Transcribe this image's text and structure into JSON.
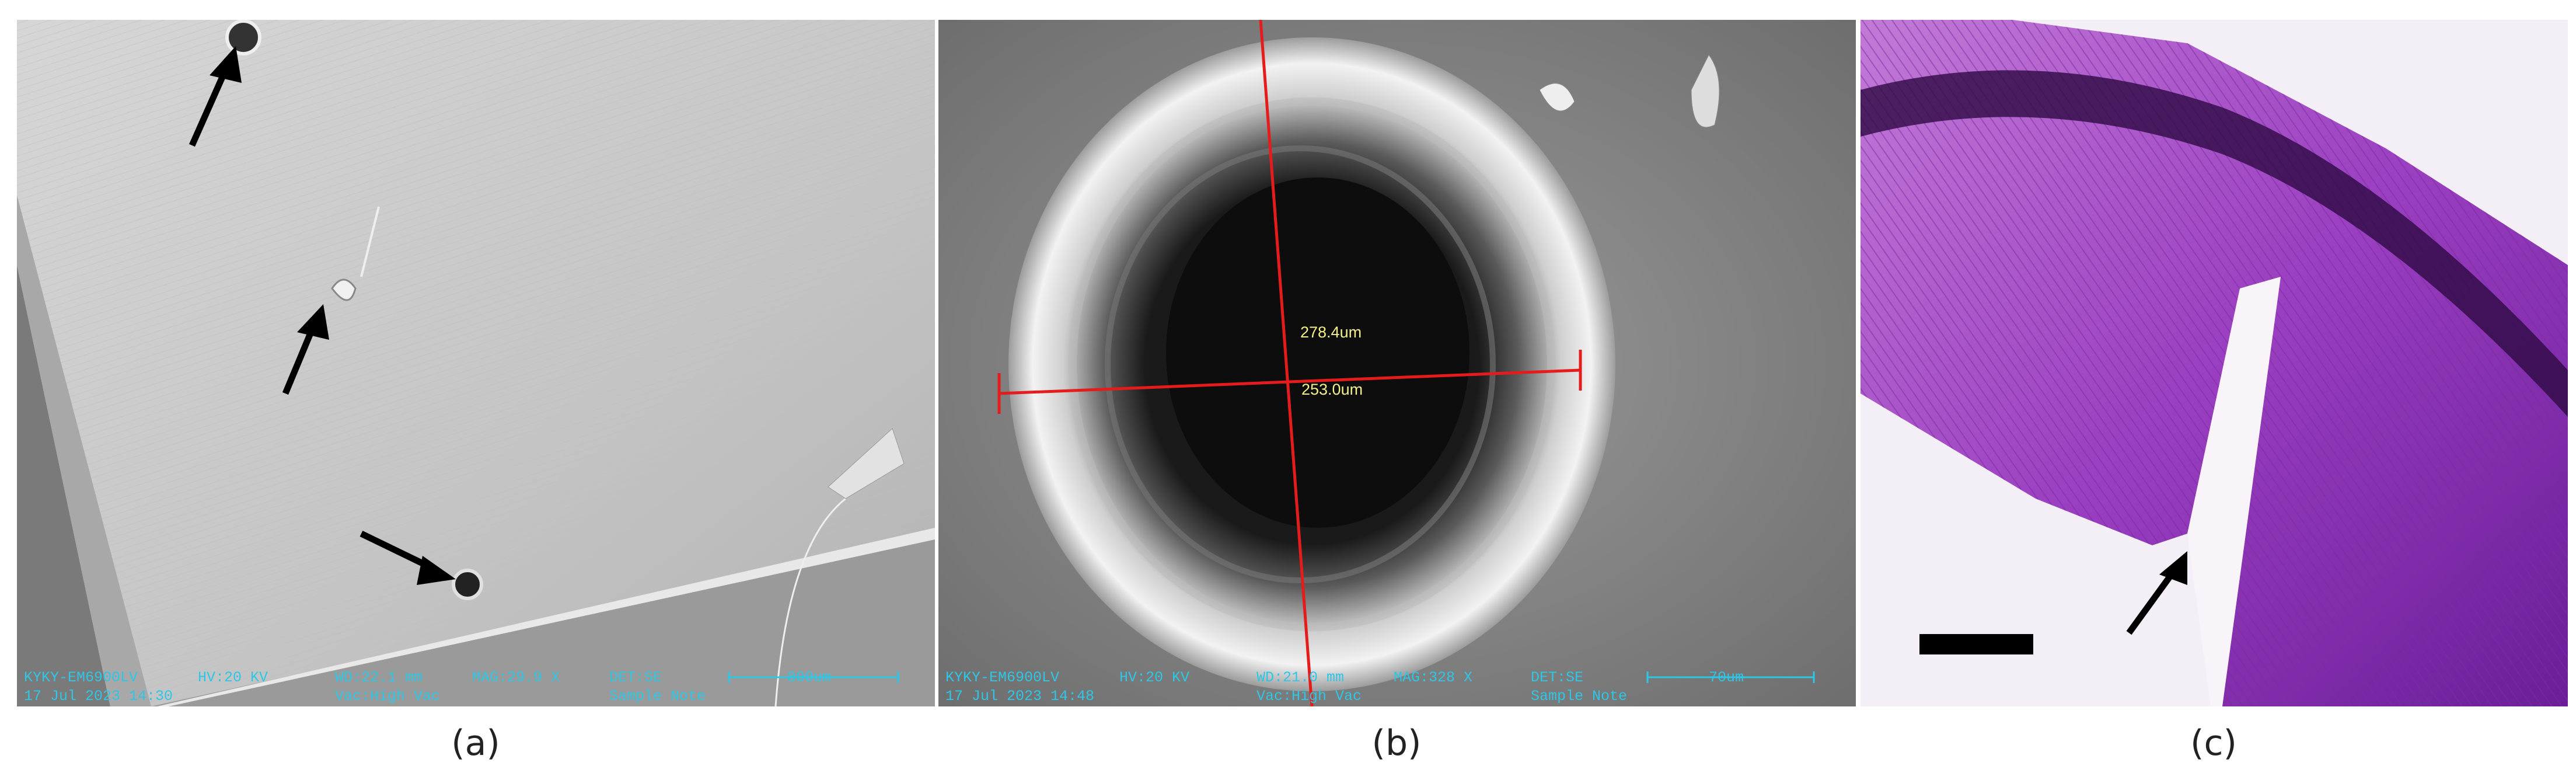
{
  "panels": [
    {
      "label": "(a)",
      "info": {
        "instrument": "KYKY-EM6900LV",
        "hv": "HV:20 KV",
        "wd": "WD:22.1 mm",
        "mag": "MAG:29.9 X",
        "det": "DET:SE",
        "scale": "800um",
        "date": "17 Jul 2023 14:30",
        "vac": "Vac:High Vac",
        "note": "Sample Note"
      }
    },
    {
      "label": "(b)",
      "info": {
        "instrument": "KYKY-EM6900LV",
        "hv": "HV:20 KV",
        "wd": "WD:21.0 mm",
        "mag": "MAG:328 X",
        "det": "DET:SE",
        "scale": "70um",
        "date": "17 Jul 2023 14:48",
        "vac": "Vac:High Vac",
        "note": "Sample Note"
      },
      "measurements": [
        "278.4um",
        "253.0um"
      ]
    },
    {
      "label": "(c)"
    }
  ]
}
